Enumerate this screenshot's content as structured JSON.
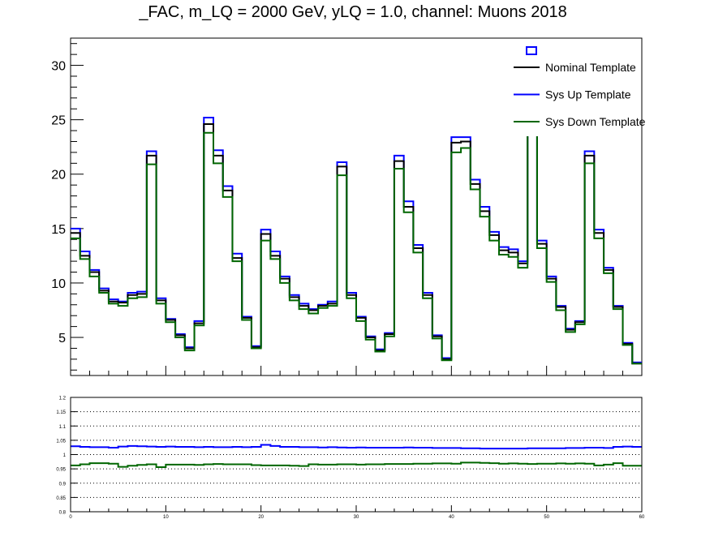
{
  "title": "_FAC, m_LQ = 2000 GeV, yLQ = 1.0, channel: Muons 2018",
  "legend": {
    "entries": [
      {
        "label": "Nominal Template",
        "color": "#000000"
      },
      {
        "label": "Sys Up Template",
        "color": "#0000ff"
      },
      {
        "label": "Sys Down Template",
        "color": "#006600"
      }
    ]
  },
  "chart_data": [
    {
      "type": "line",
      "title": "_FAC, m_LQ = 2000 GeV, yLQ = 1.0, channel: Muons 2018",
      "xlim": [
        0,
        60
      ],
      "ylim": [
        1.5,
        32.5
      ],
      "yticks": [
        5,
        10,
        15,
        20,
        25,
        30
      ],
      "grid": false,
      "legend_position": "top-right",
      "x_bin_edges": [
        0,
        1,
        2,
        3,
        4,
        5,
        6,
        7,
        8,
        9,
        10,
        11,
        12,
        13,
        14,
        15,
        16,
        17,
        18,
        19,
        20,
        21,
        22,
        23,
        24,
        25,
        26,
        27,
        28,
        29,
        30,
        31,
        32,
        33,
        34,
        35,
        36,
        37,
        38,
        39,
        40,
        41,
        42,
        43,
        44,
        45,
        46,
        47,
        48,
        49,
        50,
        51,
        52,
        53,
        54,
        55,
        56,
        57,
        58,
        59,
        60
      ],
      "series": [
        {
          "name": "Nominal Template",
          "color": "#000000",
          "values": [
            14.6,
            12.5,
            11.0,
            9.3,
            8.3,
            8.2,
            8.9,
            9.0,
            21.7,
            8.4,
            6.6,
            5.2,
            4.0,
            6.3,
            24.6,
            21.7,
            18.5,
            12.3,
            6.8,
            4.1,
            14.5,
            12.5,
            10.4,
            8.7,
            7.9,
            7.5,
            7.9,
            8.1,
            20.7,
            8.9,
            6.8,
            5.0,
            3.8,
            5.3,
            21.2,
            17.0,
            13.2,
            8.9,
            5.1,
            3.0,
            22.9,
            23.0,
            19.1,
            16.6,
            14.4,
            13.0,
            12.8,
            11.8,
            26.4,
            13.6,
            10.4,
            7.8,
            5.7,
            6.4,
            21.7,
            14.6,
            11.2,
            7.8,
            4.4,
            2.6
          ]
        },
        {
          "name": "Sys Up Template",
          "color": "#0000ff",
          "values": [
            15.0,
            12.9,
            11.2,
            9.5,
            8.5,
            8.3,
            9.1,
            9.2,
            22.1,
            8.6,
            6.7,
            5.3,
            4.1,
            6.5,
            25.2,
            22.2,
            18.9,
            12.7,
            6.9,
            4.2,
            14.9,
            12.9,
            10.6,
            8.9,
            8.1,
            7.6,
            8.0,
            8.3,
            21.1,
            9.1,
            6.9,
            5.1,
            3.9,
            5.4,
            21.7,
            17.5,
            13.5,
            9.1,
            5.2,
            3.1,
            23.4,
            23.4,
            19.5,
            17.0,
            14.7,
            13.3,
            13.1,
            12.0,
            26.9,
            13.9,
            10.6,
            7.9,
            5.8,
            6.5,
            22.1,
            14.9,
            11.4,
            7.9,
            4.5,
            2.7
          ]
        },
        {
          "name": "Sys Down Template",
          "color": "#006600",
          "values": [
            14.1,
            12.2,
            10.6,
            9.1,
            8.1,
            7.9,
            8.6,
            8.7,
            20.9,
            8.1,
            6.4,
            5.0,
            3.8,
            6.1,
            23.8,
            21.0,
            17.9,
            12.0,
            6.6,
            4.0,
            13.9,
            12.2,
            10.0,
            8.4,
            7.6,
            7.2,
            7.7,
            7.9,
            19.9,
            8.6,
            6.5,
            4.8,
            3.7,
            5.1,
            20.5,
            16.5,
            12.8,
            8.6,
            4.9,
            2.9,
            22.0,
            22.4,
            18.6,
            16.1,
            13.9,
            12.6,
            12.4,
            11.4,
            25.5,
            13.2,
            10.1,
            7.5,
            5.5,
            6.2,
            21.0,
            14.1,
            10.9,
            7.6,
            4.3,
            2.6
          ]
        }
      ]
    },
    {
      "type": "line",
      "title": "",
      "xlim": [
        0,
        60
      ],
      "ylim": [
        0.8,
        1.2
      ],
      "xticks": [
        0,
        10,
        20,
        30,
        40,
        50,
        60
      ],
      "yticks": [
        0.8,
        0.85,
        0.9,
        0.95,
        1,
        1.05,
        1.1,
        1.15,
        1.2
      ],
      "ytick_labels": [
        "0.8",
        "0.85",
        "0.9",
        "0.95",
        "1",
        "1.05",
        "1.1",
        "1.15",
        "1.2"
      ],
      "grid": true,
      "series": [
        {
          "color": "#0000ff",
          "values": [
            1.029,
            1.027,
            1.026,
            1.026,
            1.024,
            1.028,
            1.03,
            1.029,
            1.028,
            1.027,
            1.028,
            1.027,
            1.027,
            1.026,
            1.027,
            1.026,
            1.026,
            1.027,
            1.026,
            1.027,
            1.034,
            1.03,
            1.027,
            1.027,
            1.026,
            1.026,
            1.025,
            1.026,
            1.025,
            1.024,
            1.025,
            1.024,
            1.024,
            1.024,
            1.024,
            1.025,
            1.024,
            1.024,
            1.023,
            1.023,
            1.023,
            1.022,
            1.022,
            1.021,
            1.021,
            1.021,
            1.021,
            1.021,
            1.022,
            1.022,
            1.022,
            1.022,
            1.023,
            1.023,
            1.024,
            1.024,
            1.023,
            1.027,
            1.028,
            1.027
          ]
        },
        {
          "color": "#006600",
          "values": [
            0.962,
            0.966,
            0.97,
            0.97,
            0.968,
            0.957,
            0.961,
            0.964,
            0.966,
            0.956,
            0.965,
            0.965,
            0.965,
            0.964,
            0.966,
            0.967,
            0.966,
            0.966,
            0.966,
            0.963,
            0.962,
            0.962,
            0.962,
            0.961,
            0.96,
            0.966,
            0.965,
            0.965,
            0.966,
            0.966,
            0.965,
            0.966,
            0.966,
            0.967,
            0.967,
            0.967,
            0.968,
            0.968,
            0.969,
            0.969,
            0.968,
            0.972,
            0.972,
            0.971,
            0.97,
            0.968,
            0.969,
            0.968,
            0.967,
            0.968,
            0.968,
            0.969,
            0.968,
            0.969,
            0.968,
            0.962,
            0.965,
            0.97,
            0.961,
            0.961
          ]
        }
      ]
    }
  ]
}
